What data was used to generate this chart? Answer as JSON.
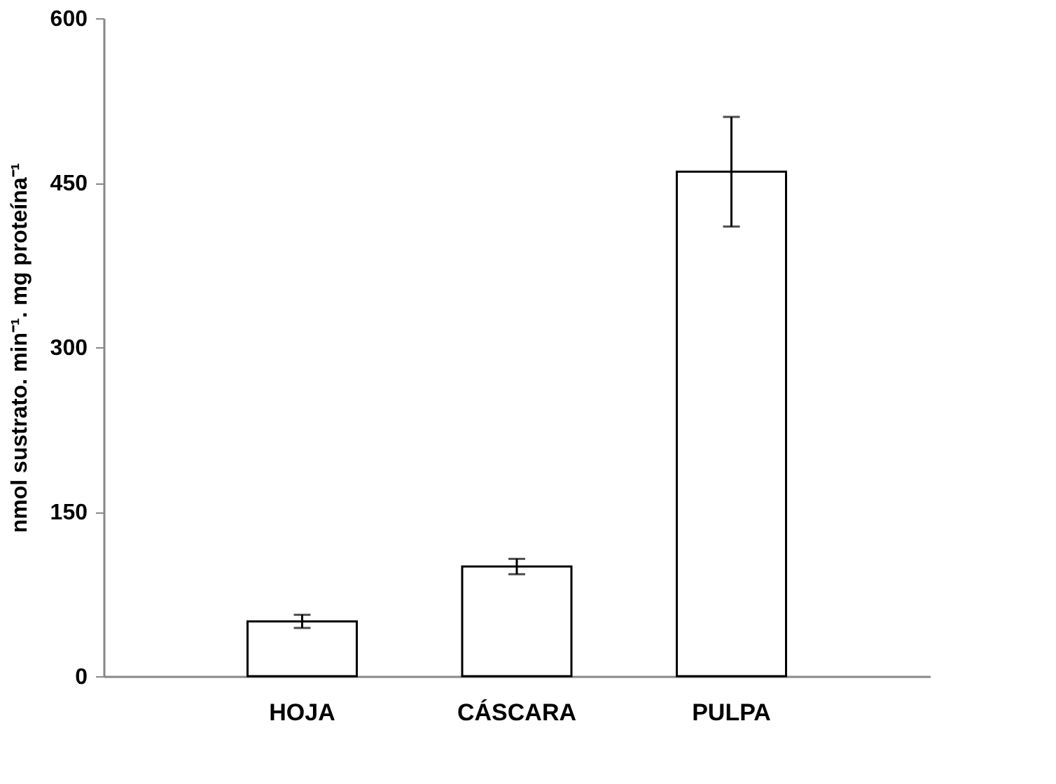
{
  "chart_data": {
    "type": "bar",
    "ylabel": "nmol sustrato. min⁻¹. mg proteína⁻¹",
    "categories": [
      "HOJA",
      "CÁSCARA",
      "PULPA"
    ],
    "series": [
      {
        "color": "#ffffff",
        "values": [
          50,
          100,
          460
        ],
        "errors": [
          6,
          7,
          50
        ]
      }
    ],
    "ylim": [
      0,
      600
    ],
    "yticks": [
      0,
      150,
      300,
      450,
      600
    ],
    "grid": false
  }
}
